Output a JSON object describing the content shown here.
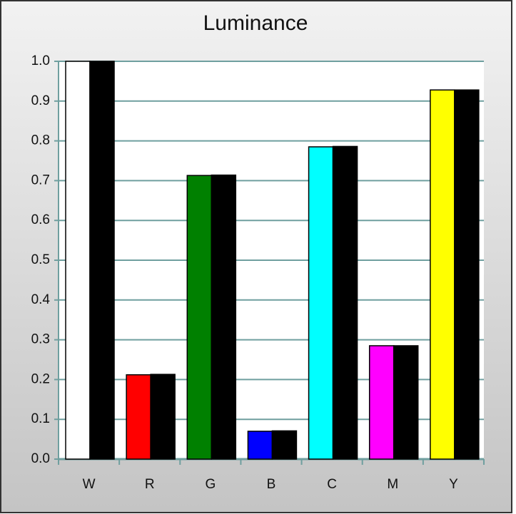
{
  "chart_data": {
    "type": "bar",
    "title": "Luminance",
    "categories": [
      "W",
      "R",
      "G",
      "B",
      "C",
      "M",
      "Y"
    ],
    "series": [
      {
        "colors": [
          "#ffffff",
          "#ff0000",
          "#008000",
          "#0000ff",
          "#00ffff",
          "#ff00ff",
          "#ffff00"
        ],
        "values": [
          1.0,
          0.212,
          0.713,
          0.07,
          0.785,
          0.285,
          0.928
        ]
      },
      {
        "color": "#000000",
        "values": [
          1.0,
          0.213,
          0.714,
          0.071,
          0.786,
          0.285,
          0.928
        ]
      }
    ],
    "ylim": [
      0,
      1
    ],
    "yticks": [
      {
        "value": 0,
        "label": "0.0"
      },
      0.1,
      0.2,
      0.3,
      0.4,
      0.5,
      0.6,
      0.7,
      0.8,
      0.9,
      {
        "value": 1,
        "label": "1.0"
      }
    ],
    "grid": true
  }
}
